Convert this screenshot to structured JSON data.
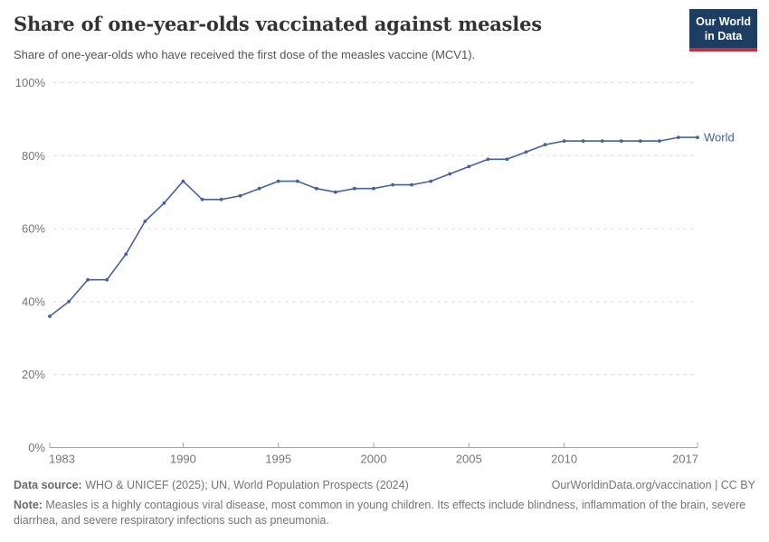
{
  "header": {
    "title": "Share of one-year-olds vaccinated against measles",
    "subtitle": "Share of one-year-olds who have received the first dose of the measles vaccine (MCV1).",
    "logo": {
      "line1": "Our World",
      "line2": "in Data"
    }
  },
  "chart_data": {
    "type": "line",
    "title": "Share of one-year-olds vaccinated against measles",
    "x": [
      1983,
      1984,
      1985,
      1986,
      1987,
      1988,
      1989,
      1990,
      1991,
      1992,
      1993,
      1994,
      1995,
      1996,
      1997,
      1998,
      1999,
      2000,
      2001,
      2002,
      2003,
      2004,
      2005,
      2006,
      2007,
      2008,
      2009,
      2010,
      2011,
      2012,
      2013,
      2014,
      2015,
      2016,
      2017
    ],
    "series": [
      {
        "name": "World",
        "values": [
          36,
          40,
          46,
          46,
          53,
          62,
          67,
          73,
          68,
          68,
          69,
          71,
          73,
          73,
          71,
          70,
          71,
          71,
          72,
          72,
          73,
          75,
          77,
          79,
          79,
          81,
          83,
          84,
          84,
          84,
          84,
          84,
          84,
          85,
          85
        ]
      }
    ],
    "xlim": [
      1983,
      2017
    ],
    "ylim": [
      0,
      100
    ],
    "x_ticks": [
      1983,
      1990,
      1995,
      2000,
      2005,
      2010,
      2017
    ],
    "y_ticks": [
      0,
      20,
      40,
      60,
      80,
      100
    ],
    "y_tick_suffix": "%",
    "grid": true,
    "legend_position": "end-of-line"
  },
  "colors": {
    "line": "#4262a5",
    "grid": "#dddddd",
    "axis": "#a3a3a3",
    "logo_bg": "#1d3d63",
    "logo_bar": "#c0323f"
  },
  "footer": {
    "datasource_label": "Data source:",
    "datasource_text": " WHO & UNICEF (2025); UN, World Population Prospects (2024)",
    "link_text": "OurWorldinData.org/vaccination | CC BY",
    "note_label": "Note:",
    "note_text": " Measles is a highly contagious viral disease, most common in young children. Its effects include blindness, inflammation of the brain, severe diarrhea, and severe respiratory infections such as pneumonia."
  }
}
